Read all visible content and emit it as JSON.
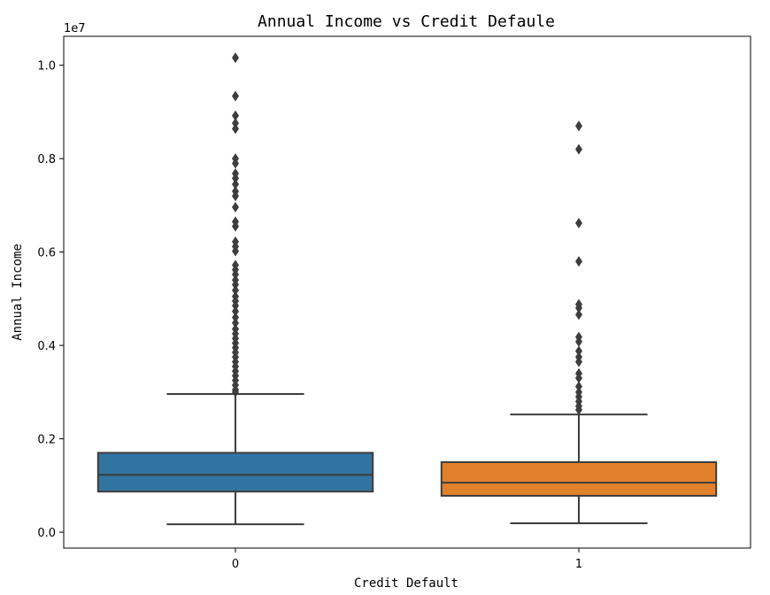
{
  "chart_data": {
    "type": "box",
    "title": "Annual Income vs Credit Defaule",
    "xlabel": "Credit Default",
    "ylabel": "Annual Income",
    "y_offset_label": "1e7",
    "ylim": [
      -0.034,
      1.062
    ],
    "yticks": [
      0.0,
      0.2,
      0.4,
      0.6,
      0.8,
      1.0
    ],
    "ytick_labels": [
      "0.0",
      "0.2",
      "0.4",
      "0.6",
      "0.8",
      "1.0"
    ],
    "categories": [
      "0",
      "1"
    ],
    "grid": false,
    "boxes": [
      {
        "category": "0",
        "color": "#3274a1",
        "whisker_low": 0.017,
        "q1": 0.087,
        "median": 0.123,
        "q3": 0.17,
        "whisker_high": 0.296,
        "outliers": [
          1.016,
          0.934,
          0.892,
          0.876,
          0.864,
          0.8,
          0.79,
          0.768,
          0.758,
          0.745,
          0.73,
          0.72,
          0.696,
          0.665,
          0.655,
          0.622,
          0.612,
          0.602,
          0.572,
          0.562,
          0.552,
          0.54,
          0.53,
          0.518,
          0.505,
          0.495,
          0.485,
          0.473,
          0.46,
          0.448,
          0.435,
          0.425,
          0.415,
          0.405,
          0.395,
          0.385,
          0.375,
          0.365,
          0.355,
          0.345,
          0.335,
          0.325,
          0.315,
          0.305,
          0.3
        ]
      },
      {
        "category": "1",
        "color": "#e1812c",
        "whisker_low": 0.019,
        "q1": 0.078,
        "median": 0.106,
        "q3": 0.15,
        "whisker_high": 0.252,
        "outliers": [
          0.87,
          0.82,
          0.662,
          0.58,
          0.488,
          0.48,
          0.466,
          0.418,
          0.408,
          0.388,
          0.375,
          0.365,
          0.34,
          0.33,
          0.312,
          0.3,
          0.29,
          0.28,
          0.27,
          0.262
        ]
      }
    ]
  }
}
